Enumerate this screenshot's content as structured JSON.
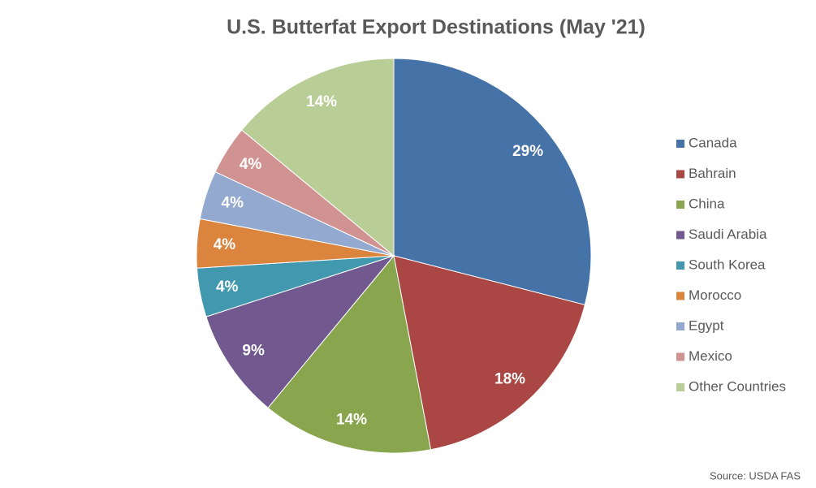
{
  "chart_data": {
    "type": "pie",
    "title": "U.S. Butterfat Export Destinations (May '21)",
    "categories": [
      "Canada",
      "Bahrain",
      "China",
      "Saudi Arabia",
      "South Korea",
      "Morocco",
      "Egypt",
      "Mexico",
      "Other Countries"
    ],
    "values": [
      29,
      18,
      14,
      9,
      4,
      4,
      4,
      4,
      14
    ],
    "value_labels": [
      "29%",
      "18%",
      "14%",
      "9%",
      "4%",
      "4%",
      "4%",
      "4%",
      "14%"
    ],
    "colors": [
      "#4572A7",
      "#AA4643",
      "#89A54E",
      "#71588F",
      "#4198AF",
      "#DB843D",
      "#93A9CF",
      "#D19392",
      "#B9CD96"
    ],
    "legend": "right",
    "source": "Source: USDA FAS"
  }
}
